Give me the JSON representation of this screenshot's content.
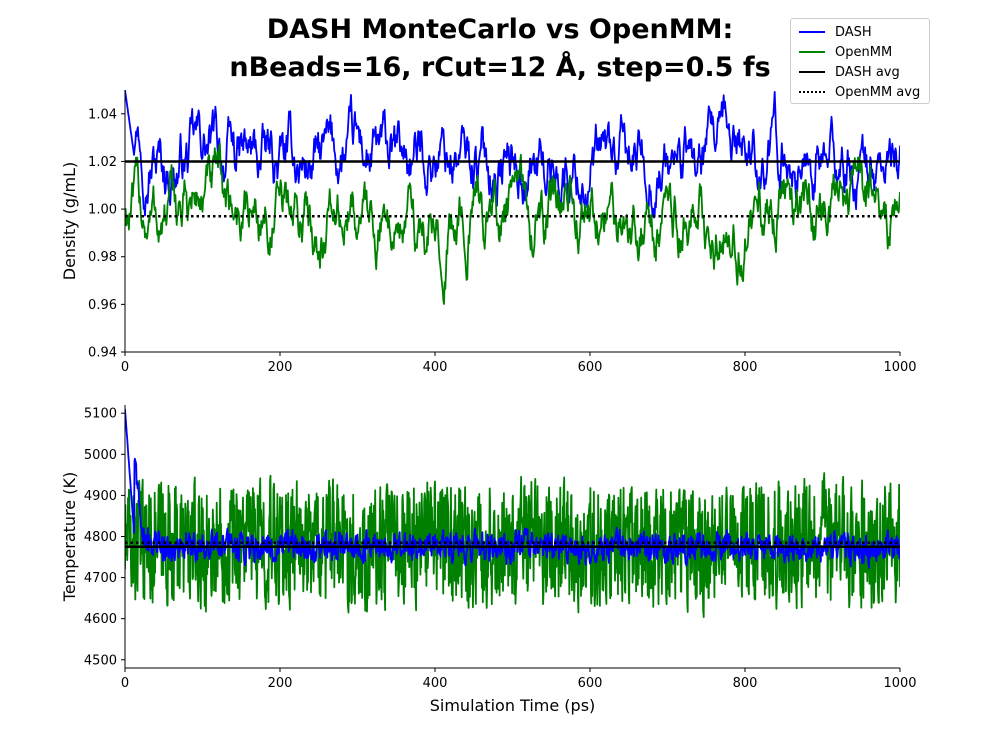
{
  "title": {
    "line1": "DASH MonteCarlo vs OpenMM:",
    "line2": "nBeads=16, rCut=12 Å, step=0.5 fs"
  },
  "legend": {
    "placement": "top-right",
    "entries": [
      {
        "label": "DASH",
        "color": "#0000ff",
        "style": "solid"
      },
      {
        "label": "OpenMM",
        "color": "#008000",
        "style": "solid"
      },
      {
        "label": "DASH avg",
        "color": "#000000",
        "style": "solid"
      },
      {
        "label": "OpenMM avg",
        "color": "#000000",
        "style": "dotted"
      }
    ]
  },
  "chart_data": [
    {
      "type": "line",
      "xlabel": "",
      "ylabel": "Density (g/mL)",
      "xlim": [
        0,
        1000
      ],
      "ylim": [
        0.94,
        1.05
      ],
      "xticks": [
        0,
        200,
        400,
        600,
        800,
        1000
      ],
      "yticks": [
        0.94,
        0.96,
        0.98,
        1.0,
        1.02,
        1.04
      ],
      "ytick_labels": [
        "0.94",
        "0.96",
        "0.98",
        "1.00",
        "1.02",
        "1.04"
      ],
      "grid": false,
      "series": [
        {
          "name": "DASH",
          "color": "#0000ff",
          "x": [
            0,
            50,
            100,
            150,
            200,
            250,
            300,
            350,
            400,
            450,
            500,
            550,
            600,
            650,
            700,
            750,
            800,
            850,
            900,
            950,
            1000
          ],
          "values": [
            1.05,
            1.018,
            1.025,
            1.02,
            1.018,
            1.02,
            1.022,
            1.018,
            1.025,
            1.02,
            1.02,
            1.018,
            1.015,
            1.02,
            1.02,
            1.018,
            1.028,
            1.022,
            1.02,
            1.015,
            1.018
          ]
        },
        {
          "name": "OpenMM",
          "color": "#008000",
          "x": [
            0,
            50,
            100,
            150,
            200,
            250,
            300,
            350,
            400,
            450,
            500,
            550,
            600,
            650,
            700,
            750,
            800,
            850,
            900,
            950,
            1000
          ],
          "values": [
            1.0,
            0.995,
            1.005,
            1.0,
            0.995,
            0.995,
            0.998,
            0.996,
            0.99,
            1.0,
            0.997,
            0.998,
            0.995,
            0.998,
            0.993,
            0.996,
            0.995,
            0.998,
            0.997,
            0.998,
            0.995
          ]
        },
        {
          "name": "DASH avg",
          "color": "#000000",
          "style": "solid",
          "x": [
            0,
            1000
          ],
          "values": [
            1.02,
            1.02
          ]
        },
        {
          "name": "OpenMM avg",
          "color": "#000000",
          "style": "dotted",
          "x": [
            0,
            1000
          ],
          "values": [
            0.997,
            0.997
          ]
        }
      ]
    },
    {
      "type": "line",
      "xlabel": "Simulation Time (ps)",
      "ylabel": "Temperature (K)",
      "xlim": [
        0,
        1000
      ],
      "ylim": [
        4480,
        5120
      ],
      "xticks": [
        0,
        200,
        400,
        600,
        800,
        1000
      ],
      "yticks": [
        4500,
        4600,
        4700,
        4800,
        4900,
        5000,
        5100
      ],
      "ytick_labels": [
        "4500",
        "4600",
        "4700",
        "4800",
        "4900",
        "5000",
        "5100"
      ],
      "grid": false,
      "series": [
        {
          "name": "OpenMM",
          "color": "#008000",
          "x": [
            0,
            50,
            100,
            150,
            200,
            250,
            300,
            350,
            400,
            450,
            500,
            550,
            600,
            650,
            700,
            750,
            800,
            850,
            900,
            950,
            1000
          ],
          "values": [
            4780,
            4790,
            4770,
            4800,
            4780,
            4790,
            4770,
            4780,
            4790,
            4770,
            4790,
            4780,
            4770,
            4790,
            4780,
            4770,
            4790,
            4780,
            4790,
            4780,
            4790
          ]
        },
        {
          "name": "DASH",
          "color": "#0000ff",
          "x": [
            0,
            25,
            50,
            100,
            150,
            200,
            250,
            300,
            350,
            400,
            450,
            500,
            550,
            600,
            650,
            700,
            750,
            800,
            850,
            900,
            950,
            1000
          ],
          "values": [
            5110,
            4800,
            4770,
            4775,
            4780,
            4772,
            4778,
            4775,
            4770,
            4778,
            4776,
            4774,
            4778,
            4772,
            4776,
            4775,
            4778,
            4774,
            4776,
            4775,
            4772,
            4776
          ]
        },
        {
          "name": "DASH avg",
          "color": "#000000",
          "style": "solid",
          "x": [
            0,
            1000
          ],
          "values": [
            4775,
            4775
          ]
        },
        {
          "name": "OpenMM avg",
          "color": "#000000",
          "style": "dotted",
          "x": [
            0,
            1000
          ],
          "values": [
            4785,
            4785
          ]
        }
      ]
    }
  ]
}
